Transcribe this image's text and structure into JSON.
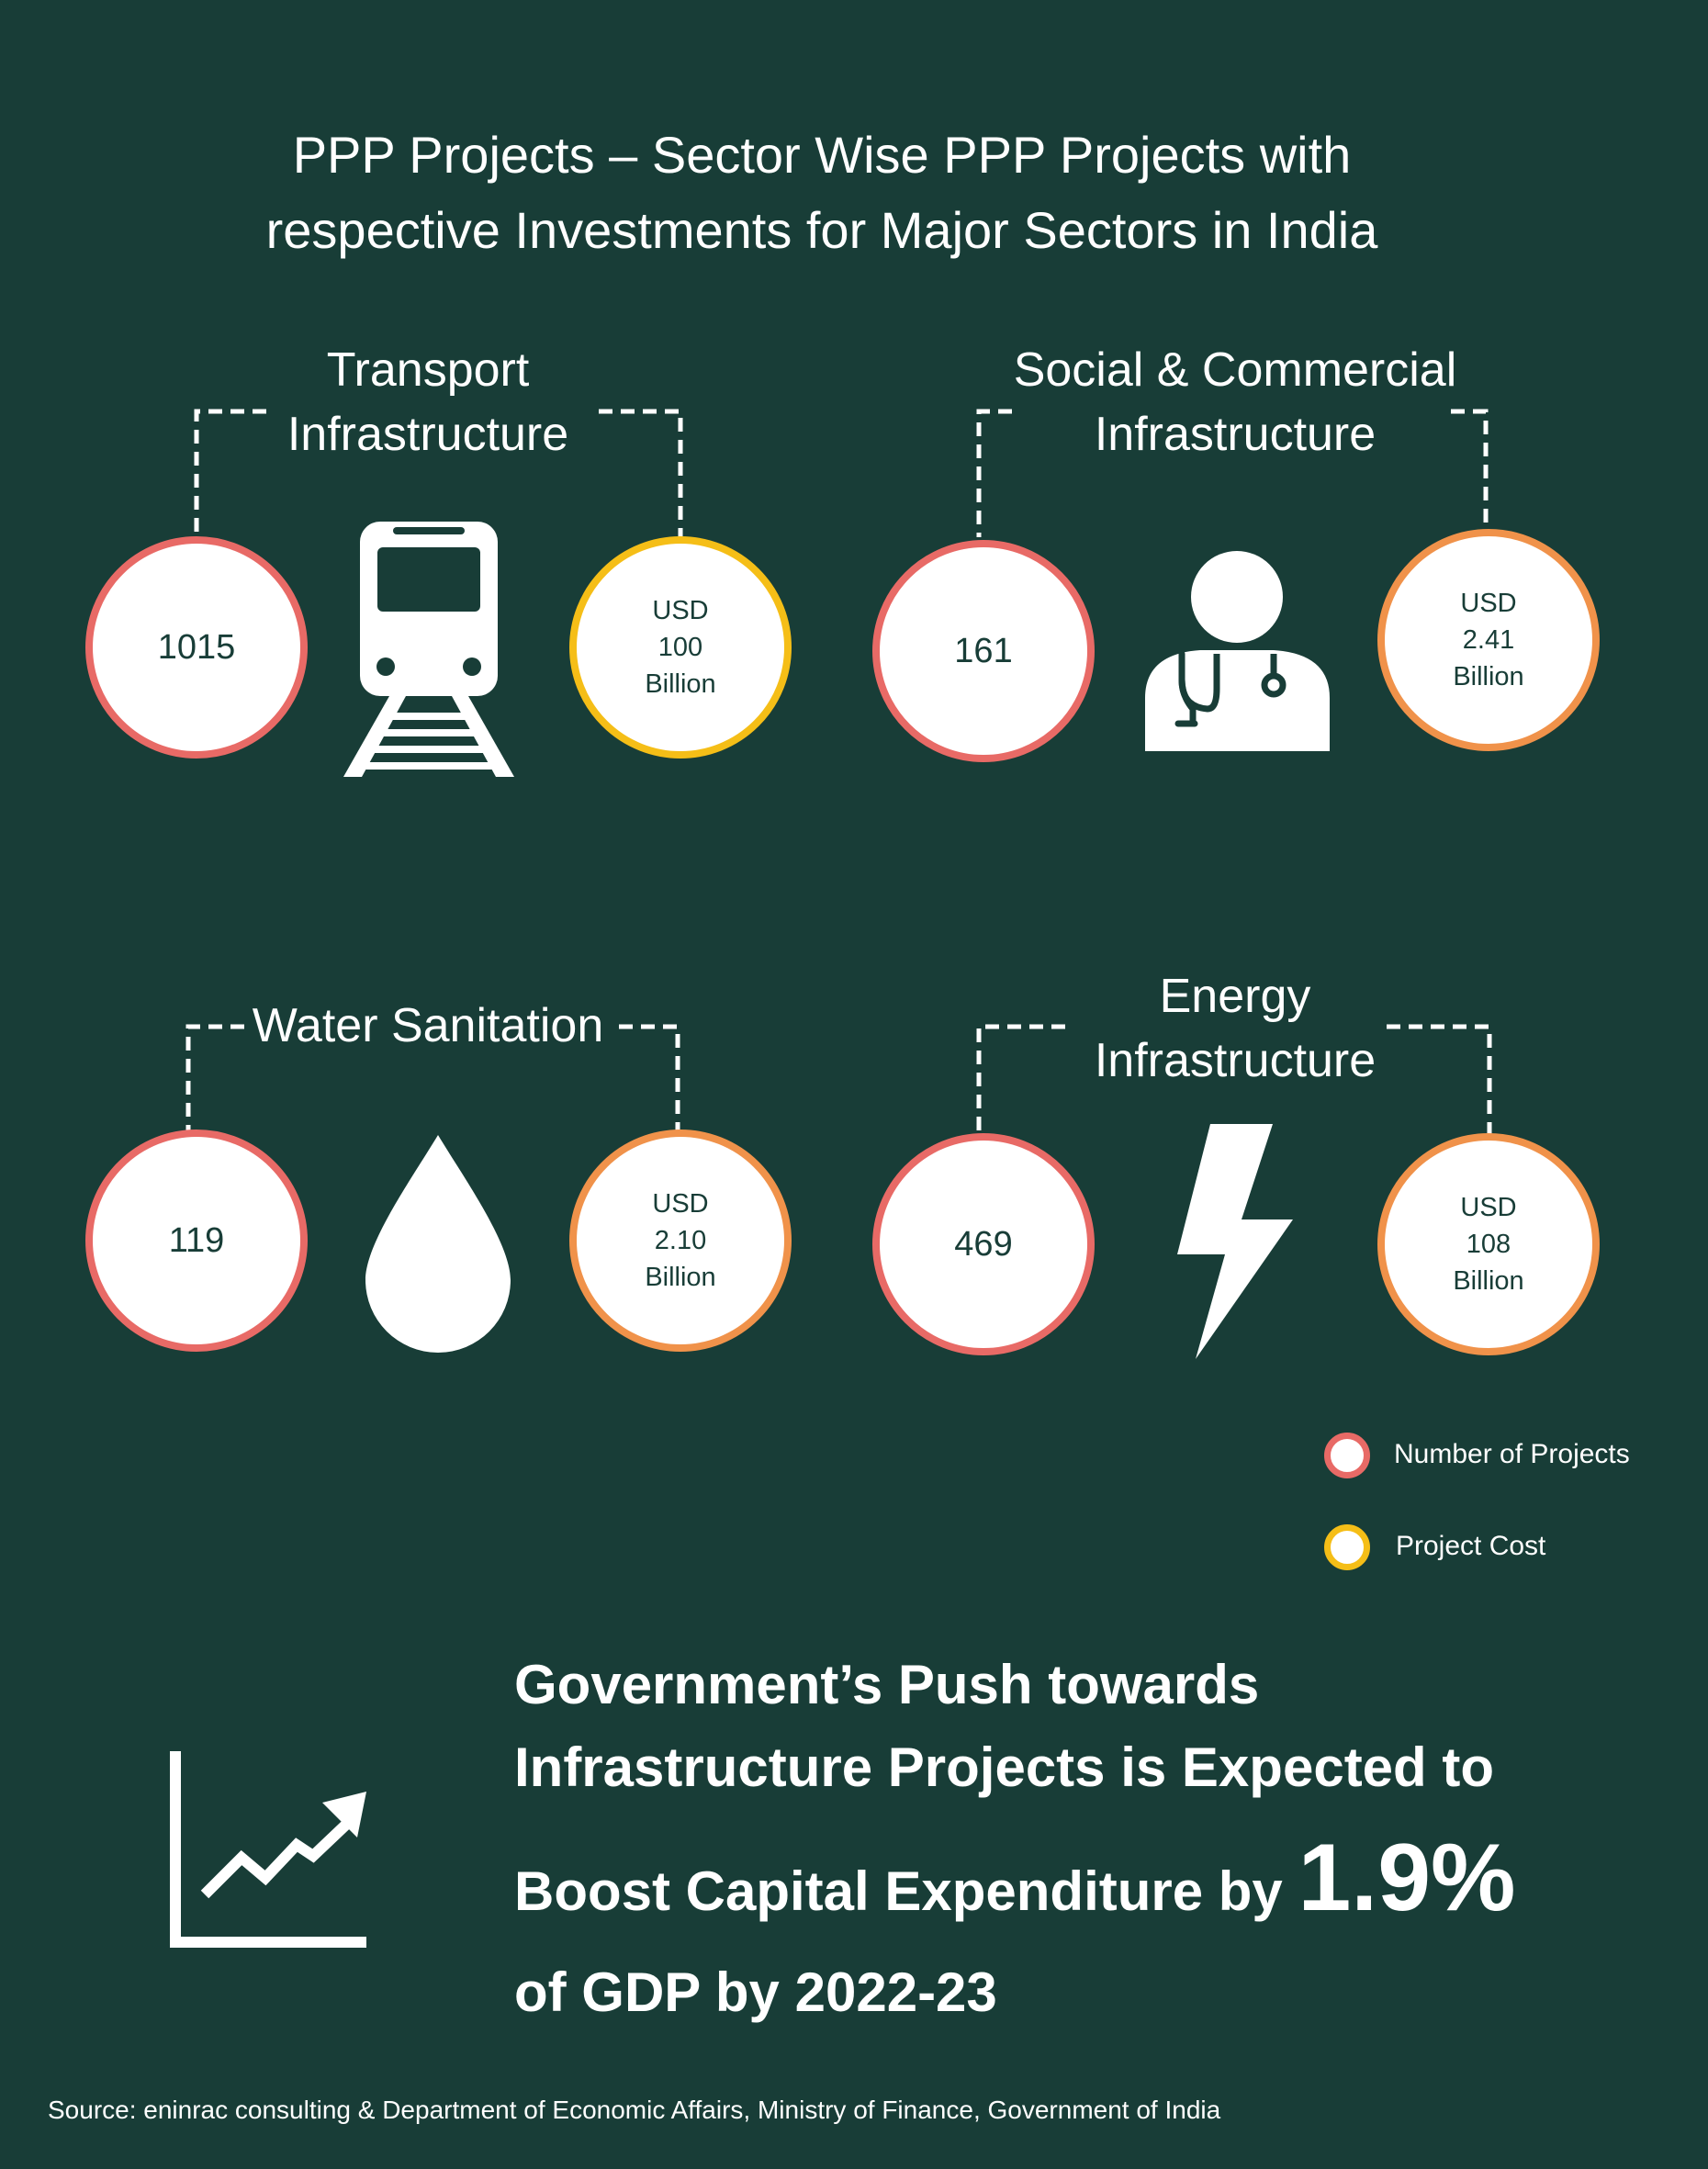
{
  "title": {
    "line1": "PPP Projects –  Sector Wise PPP Projects with",
    "line2": "respective Investments for Major Sectors in India"
  },
  "sectors": [
    {
      "label_line1": "Transport",
      "label_line2": "Infrastructure",
      "projects": "1015",
      "cost": {
        "currency": "USD",
        "amount": "100",
        "unit": "Billion"
      },
      "icon": "train-icon",
      "cost_color": "#f5be17"
    },
    {
      "label_line1": "Social & Commercial",
      "label_line2": "Infrastructure",
      "projects": "161",
      "cost": {
        "currency": "USD",
        "amount": "2.41",
        "unit": "Billion"
      },
      "icon": "doctor-icon",
      "cost_color": "#f0924a"
    },
    {
      "label_line1": "Water Sanitation",
      "label_line2": "",
      "projects": "119",
      "cost": {
        "currency": "USD",
        "amount": "2.10",
        "unit": "Billion"
      },
      "icon": "water-drop-icon",
      "cost_color": "#f0924a"
    },
    {
      "label_line1": "Energy",
      "label_line2": "Infrastructure",
      "projects": "469",
      "cost": {
        "currency": "USD",
        "amount": "108",
        "unit": "Billion"
      },
      "icon": "lightning-icon",
      "cost_color": "#f0924a"
    }
  ],
  "legend": {
    "projects_label": "Number of Projects",
    "cost_label": "Project Cost"
  },
  "headline": {
    "line1": "Government’s Push towards",
    "line2": "Infrastructure Projects is Expected to",
    "line3": "Boost Capital Expenditure by ",
    "highlight": "1.9%",
    "line4": "of GDP by 2022-23",
    "icon": "growth-chart-icon"
  },
  "source": "Source: eninrac consulting & Department of Economic Affairs, Ministry of Finance, Government of India",
  "colors": {
    "background": "#183d37",
    "projects_ring": "#e86a66",
    "cost_ring_yellow": "#f5be17",
    "cost_ring_orange": "#f0924a"
  }
}
